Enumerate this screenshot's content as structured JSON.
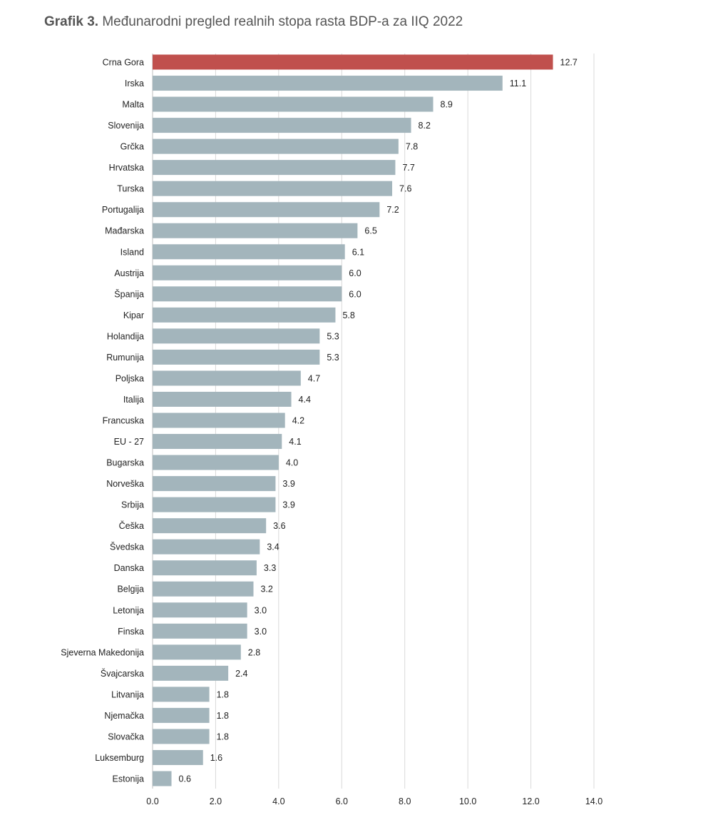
{
  "chart_data": {
    "type": "bar",
    "orientation": "horizontal",
    "title_prefix": "Grafik 3.",
    "title": "Međunarodni pregled realnih stopa rasta BDP-a za IIQ 2022",
    "xlabel": "",
    "ylabel": "",
    "xlim": [
      0,
      14
    ],
    "xticks": [
      "0.0",
      "2.0",
      "4.0",
      "6.0",
      "8.0",
      "10.0",
      "12.0",
      "14.0"
    ],
    "grid": true,
    "highlight_color": "#c0504d",
    "bar_color": "#a3b5bc",
    "categories": [
      "Crna Gora",
      "Irska",
      "Malta",
      "Slovenija",
      "Grčka",
      "Hrvatska",
      "Turska",
      "Portugalija",
      "Mađarska",
      "Island",
      "Austrija",
      "Španija",
      "Kipar",
      "Holandija",
      "Rumunija",
      "Poljska",
      "Italija",
      "Francuska",
      "EU - 27",
      "Bugarska",
      "Norveška",
      "Srbija",
      "Češka",
      "Švedska",
      "Danska",
      "Belgija",
      "Letonija",
      "Finska",
      "Sjeverna Makedonija",
      "Švajcarska",
      "Litvanija",
      "Njemačka",
      "Slovačka",
      "Luksemburg",
      "Estonija"
    ],
    "values": [
      12.7,
      11.1,
      8.9,
      8.2,
      7.8,
      7.7,
      7.6,
      7.2,
      6.5,
      6.1,
      6.0,
      6.0,
      5.8,
      5.3,
      5.3,
      4.7,
      4.4,
      4.2,
      4.1,
      4.0,
      3.9,
      3.9,
      3.6,
      3.4,
      3.3,
      3.2,
      3.0,
      3.0,
      2.8,
      2.4,
      1.8,
      1.8,
      1.8,
      1.6,
      0.6
    ],
    "labels": [
      "12.7",
      "11.1",
      "8.9",
      "8.2",
      "7.8",
      "7.7",
      "7.6",
      "7.2",
      "6.5",
      "6.1",
      "6.0",
      "6.0",
      "5.8",
      "5.3",
      "5.3",
      "4.7",
      "4.4",
      "4.2",
      "4.1",
      "4.0",
      "3.9",
      "3.9",
      "3.6",
      "3.4",
      "3.3",
      "3.2",
      "3.0",
      "3.0",
      "2.8",
      "2.4",
      "1.8",
      "1.8",
      "1.8",
      "1.6",
      "0.6"
    ],
    "highlighted": [
      "Crna Gora"
    ]
  }
}
